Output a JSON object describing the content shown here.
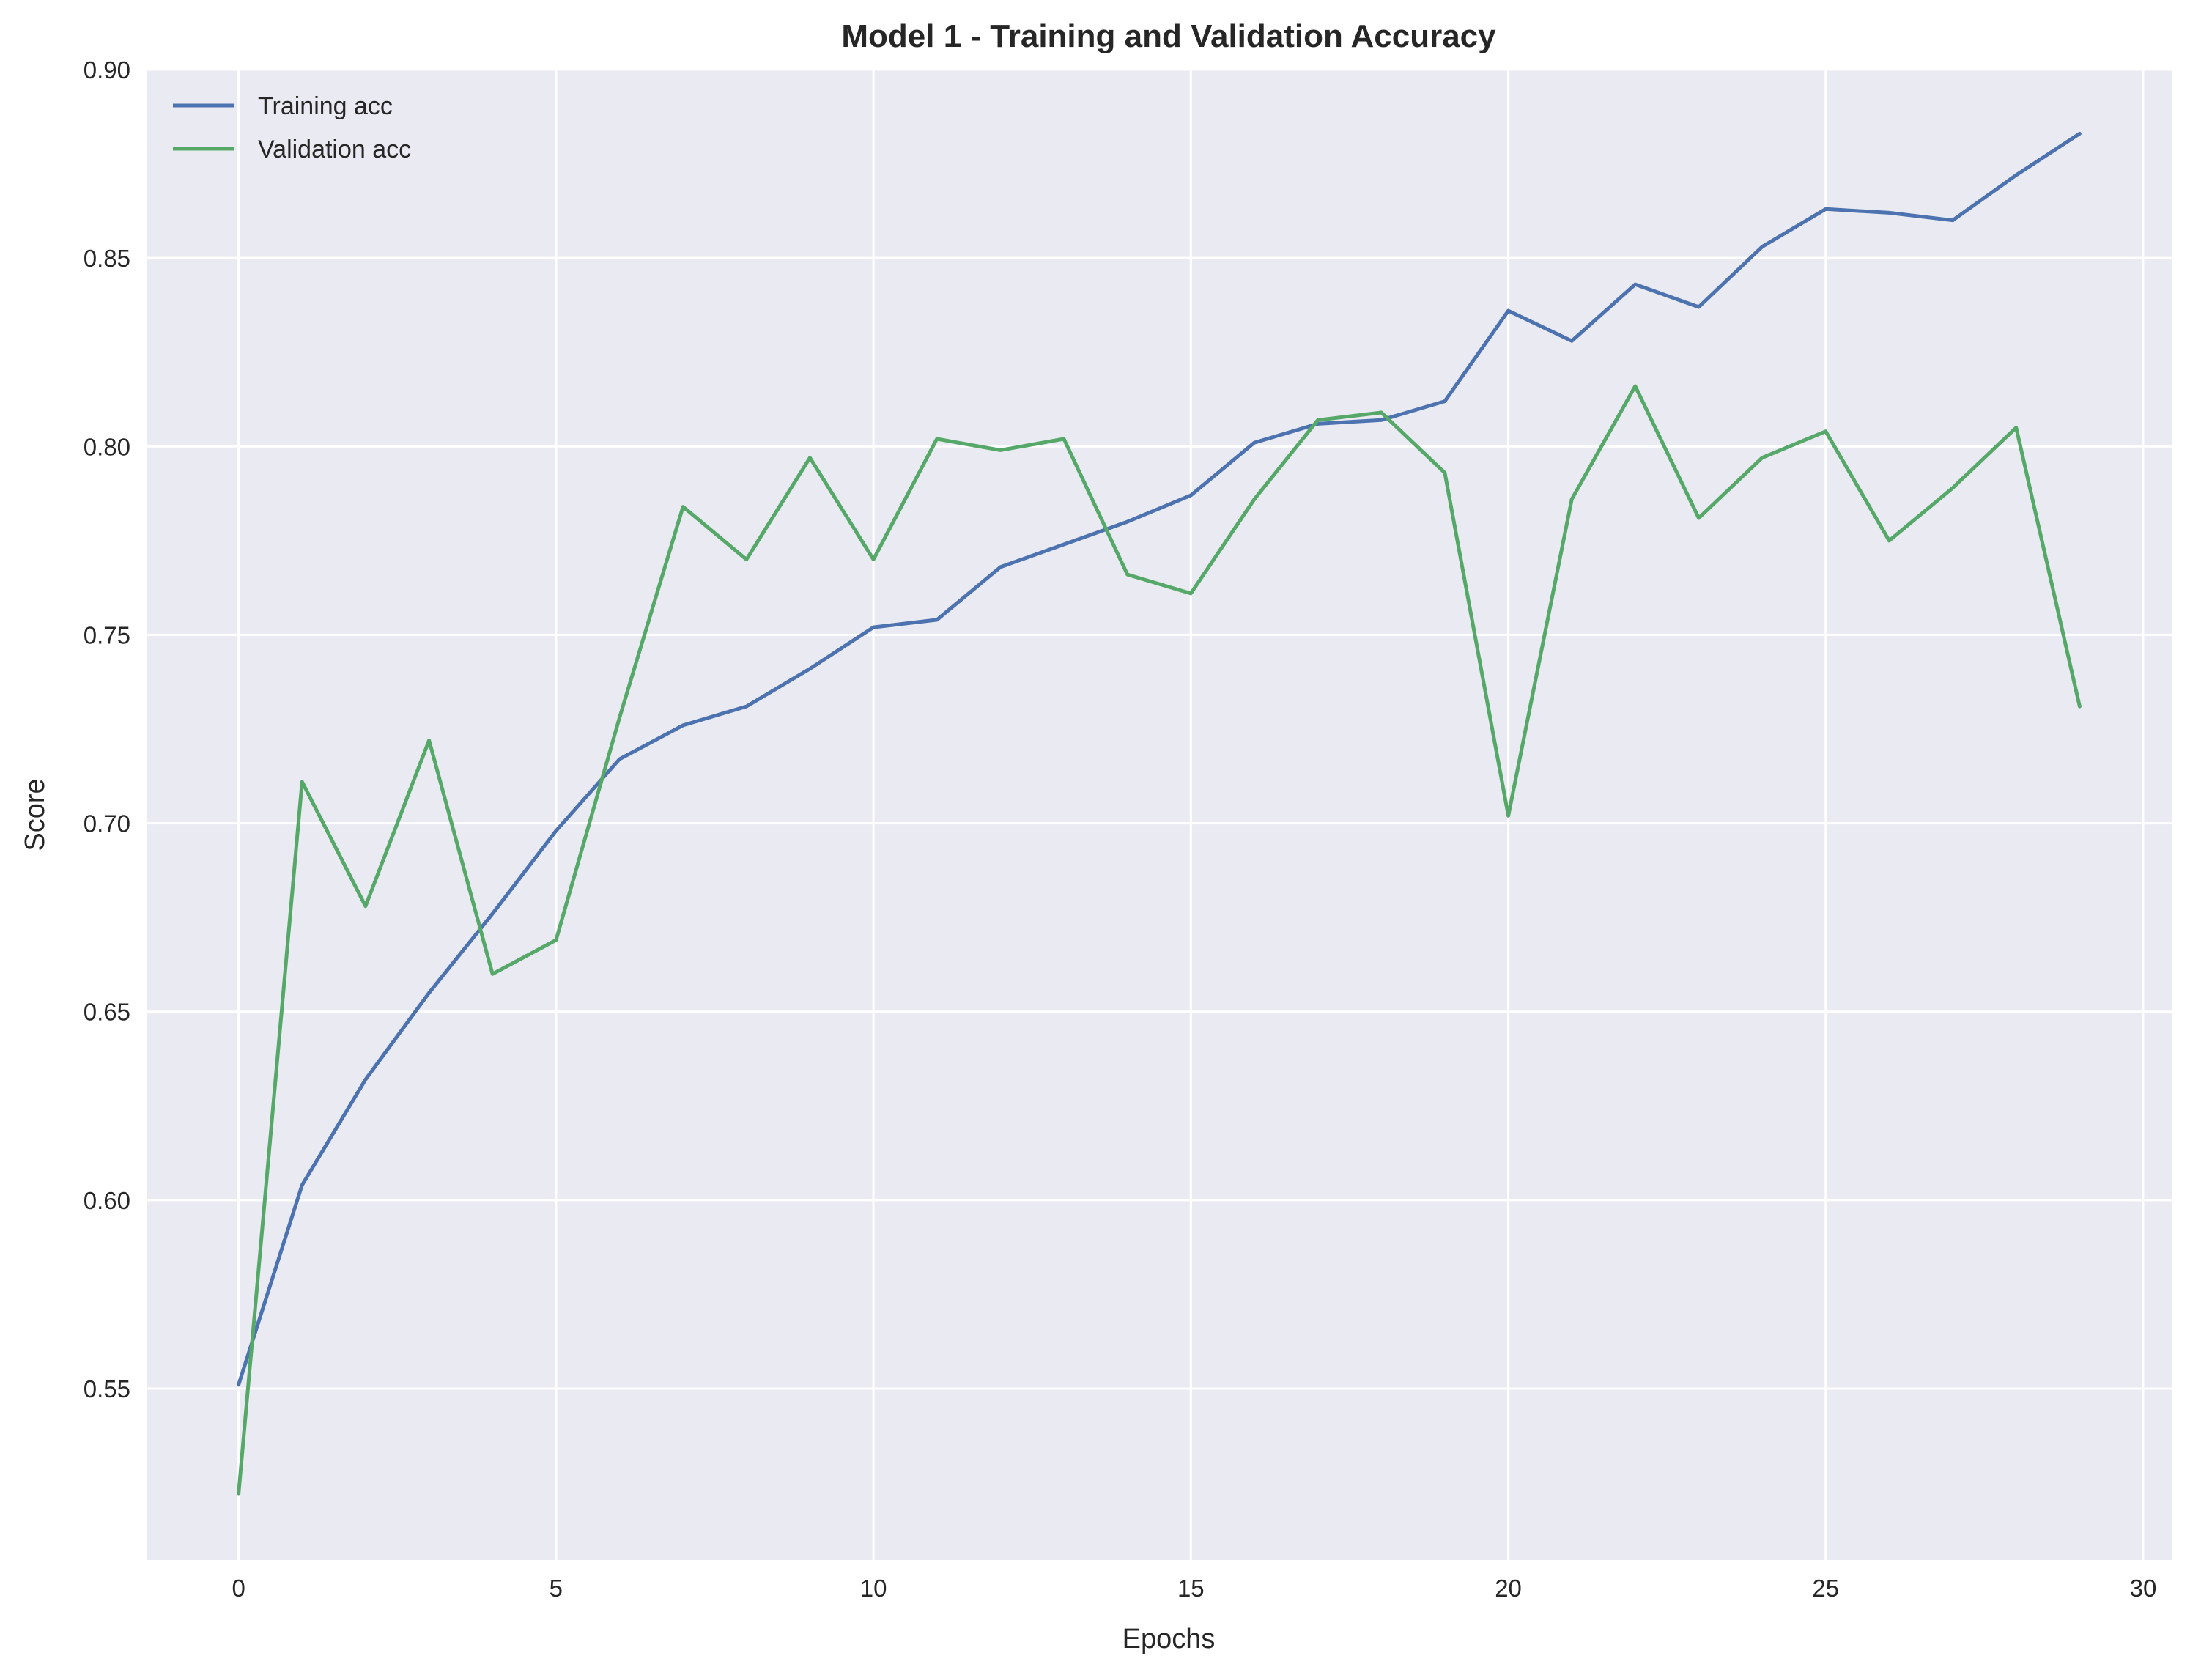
{
  "chart_data": {
    "type": "line",
    "title": "Model 1 - Training and Validation Accuracy",
    "xlabel": "Epochs",
    "ylabel": "Score",
    "xlim": [
      -1.45,
      30.45
    ],
    "ylim": [
      0.5045,
      0.9
    ],
    "xticks": [
      0,
      5,
      10,
      15,
      20,
      25,
      30
    ],
    "yticks": [
      0.55,
      0.6,
      0.65,
      0.7,
      0.75,
      0.8,
      0.85,
      0.9
    ],
    "xtick_labels": [
      "0",
      "5",
      "10",
      "15",
      "20",
      "25",
      "30"
    ],
    "ytick_labels": [
      "0.55",
      "0.60",
      "0.65",
      "0.70",
      "0.75",
      "0.80",
      "0.85",
      "0.90"
    ],
    "grid": true,
    "legend_position": "top-left",
    "background": "#eaeaf2",
    "x": [
      0,
      1,
      2,
      3,
      4,
      5,
      6,
      7,
      8,
      9,
      10,
      11,
      12,
      13,
      14,
      15,
      16,
      17,
      18,
      19,
      20,
      21,
      22,
      23,
      24,
      25,
      26,
      27,
      28,
      29
    ],
    "series": [
      {
        "name": "Training acc",
        "color": "#4c72b0",
        "values": [
          0.551,
          0.604,
          0.632,
          0.655,
          0.676,
          0.698,
          0.717,
          0.726,
          0.731,
          0.741,
          0.752,
          0.754,
          0.768,
          0.774,
          0.78,
          0.787,
          0.801,
          0.806,
          0.807,
          0.812,
          0.836,
          0.828,
          0.843,
          0.837,
          0.853,
          0.863,
          0.862,
          0.86,
          0.872,
          0.883
        ]
      },
      {
        "name": "Validation acc",
        "color": "#55a868",
        "values": [
          0.522,
          0.711,
          0.678,
          0.722,
          0.66,
          0.669,
          0.728,
          0.784,
          0.77,
          0.797,
          0.77,
          0.802,
          0.799,
          0.802,
          0.766,
          0.761,
          0.786,
          0.807,
          0.809,
          0.793,
          0.702,
          0.786,
          0.816,
          0.781,
          0.797,
          0.804,
          0.775,
          0.789,
          0.805,
          0.731
        ]
      }
    ]
  }
}
